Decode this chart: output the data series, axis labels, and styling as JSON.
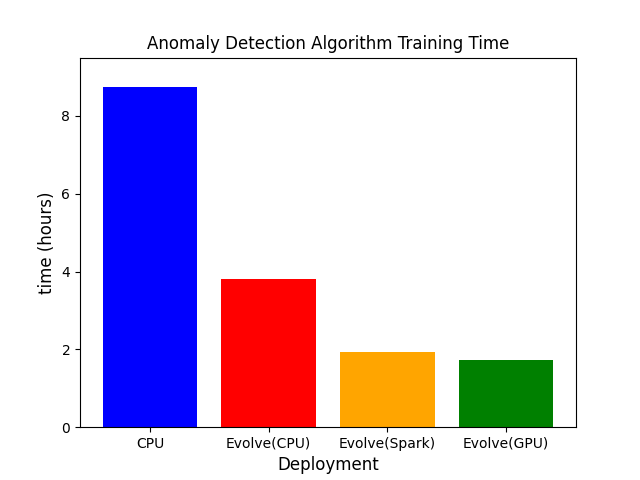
{
  "categories": [
    "CPU",
    "Evolve(CPU)",
    "Evolve(Spark)",
    "Evolve(GPU)"
  ],
  "values": [
    8.75,
    3.8,
    1.93,
    1.72
  ],
  "bar_colors": [
    "#0000ff",
    "#ff0000",
    "#ffa500",
    "#008000"
  ],
  "title": "Anomaly Detection Algorithm Training Time",
  "xlabel": "Deployment",
  "ylabel": "time (hours)",
  "ylim": [
    0,
    9.5
  ],
  "yticks": [
    0,
    2,
    4,
    6,
    8
  ],
  "title_fontsize": 12,
  "label_fontsize": 12,
  "background_color": "#ffffff",
  "bar_width": 0.8
}
